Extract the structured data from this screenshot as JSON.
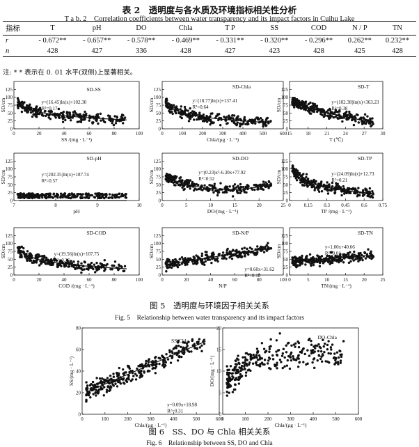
{
  "table": {
    "title_cn": "表 2　透明度与各水质及环境指标相关性分析",
    "title_en": "T a b. 2　Correlation coefficients between water transparency and its impact factors in Cuihu Lake",
    "header": [
      "指标",
      "T",
      "pH",
      "DO",
      "Chla",
      "T P",
      "SS",
      "COD",
      "N / P",
      "TN"
    ],
    "rows": [
      [
        "r",
        "- 0.672**",
        "- 0.657**",
        "- 0.578**",
        "- 0.469**",
        "- 0.331**",
        "- 0.320**",
        "- 0.296**",
        "0.262**",
        "0.232**"
      ],
      [
        "n",
        "428",
        "427",
        "336",
        "428",
        "427",
        "423",
        "428",
        "425",
        "428"
      ]
    ],
    "note": "注: * * 表示在 0. 01 水平(双侧)上显著相关。"
  },
  "fig5": {
    "caption_cn": "图 5　透明度与环境因子相关关系",
    "caption_en": "Fig. 5　Relationship between water transparency and its impact factors"
  },
  "fig6": {
    "caption_cn": "图 6　SS、DO 与 Chla 相关关系",
    "caption_en": "Fig. 6　Relationship between SS, DO and Chla"
  },
  "chart_data": [
    {
      "type": "scatter",
      "panel": "SD-SS",
      "xlabel": "SS /(mg · L⁻¹)",
      "ylabel": "SD/cm",
      "xlim": [
        0,
        100
      ],
      "ylim": [
        0,
        150
      ],
      "xticks": [
        0,
        20,
        40,
        60,
        80,
        100
      ],
      "yticks": [
        0,
        25,
        50,
        75,
        100,
        125
      ],
      "fit": "log",
      "a": -16.45,
      "b": 102.3,
      "equation": "y=(16.45)ln(x)+102.30",
      "r2": "R²=0.17"
    },
    {
      "type": "scatter",
      "panel": "SD-Chla",
      "xlabel": "Chla/(μg · L⁻¹)",
      "ylabel": "SD/cm",
      "xlim": [
        0,
        600
      ],
      "ylim": [
        0,
        150
      ],
      "xticks": [
        0,
        100,
        200,
        300,
        400,
        500,
        600
      ],
      "yticks": [
        0,
        25,
        50,
        75,
        100,
        125
      ],
      "fit": "log",
      "a": -18.77,
      "b": 137.41,
      "equation": "y=(18.77)ln(x)+137.41",
      "r2": "R²=0.64"
    },
    {
      "type": "scatter",
      "panel": "SD-T",
      "xlabel": "T (℃)",
      "ylabel": "SD/cm",
      "xlim": [
        15,
        30
      ],
      "ylim": [
        0,
        150
      ],
      "xticks": [
        15,
        18,
        21,
        24,
        27,
        30
      ],
      "yticks": [
        0,
        25,
        50,
        75,
        100,
        125
      ],
      "fit": "log",
      "a": -102.38,
      "b": 363.23,
      "equation": "y=(102.38)ln(x)+363.23",
      "r2": "R²=0.38"
    },
    {
      "type": "scatter",
      "panel": "SD-pH",
      "xlabel": "pH",
      "ylabel": "SD/cm",
      "xlim": [
        7,
        10
      ],
      "ylim": [
        0,
        150
      ],
      "xticks": [
        7,
        8,
        9,
        10
      ],
      "yticks": [
        0,
        25,
        50,
        75,
        100,
        125
      ],
      "fit": "log",
      "a": -202.35,
      "b": 187.74,
      "equation": "y=(202.35)ln(x)+187.74",
      "r2": "R²=0.57"
    },
    {
      "type": "scatter",
      "panel": "SD-DO",
      "xlabel": "DO/(mg · L⁻¹)",
      "ylabel": "SD/cm",
      "xlim": [
        0,
        25
      ],
      "ylim": [
        0,
        150
      ],
      "xticks": [
        0,
        5,
        10,
        15,
        20,
        25
      ],
      "yticks": [
        0,
        25,
        50,
        75,
        100,
        125
      ],
      "fit": "poly",
      "equation": "y=(0.23)x²-6.30x+77.92",
      "r2": "R²=0.52"
    },
    {
      "type": "scatter",
      "panel": "SD-TP",
      "xlabel": "TP /(mg · L⁻¹)",
      "ylabel": "SD/cm",
      "xlim": [
        0,
        0.75
      ],
      "ylim": [
        0,
        150
      ],
      "xticks": [
        0,
        0.15,
        0.3,
        0.45,
        0.6,
        0.75
      ],
      "yticks": [
        0,
        25,
        50,
        75,
        100,
        125
      ],
      "fit": "log",
      "a": -24.09,
      "b": 12.73,
      "equation": "y=(24.09)ln(x)+12.73",
      "r2": "R²=0.21"
    },
    {
      "type": "scatter",
      "panel": "SD-COD",
      "xlabel": "COD /(mg · L⁻¹)",
      "ylabel": "SD/cm",
      "xlim": [
        0,
        100
      ],
      "ylim": [
        0,
        150
      ],
      "xticks": [
        0,
        20,
        40,
        60,
        80,
        100
      ],
      "yticks": [
        0,
        25,
        50,
        75,
        100,
        125
      ],
      "fit": "log",
      "a": -19.56,
      "b": 107.75,
      "equation": "y=(19.56)ln(x)+107.75",
      "r2": "R²=0.36"
    },
    {
      "type": "scatter",
      "panel": "SD-N/P",
      "xlabel": "N/P",
      "ylabel": "SD/cm",
      "xlim": [
        0,
        100
      ],
      "ylim": [
        0,
        150
      ],
      "xticks": [
        0,
        20,
        40,
        60,
        80,
        100
      ],
      "yticks": [
        0,
        25,
        50,
        75,
        100,
        125
      ],
      "fit": "linear",
      "a": 0.6,
      "b": 31.62,
      "equation": "y=0.60x+31.62",
      "r2": "R²=0.18"
    },
    {
      "type": "scatter",
      "panel": "SD-TN",
      "xlabel": "TN/(mg · L⁻¹)",
      "ylabel": "SD/cm",
      "xlim": [
        0,
        25
      ],
      "ylim": [
        0,
        150
      ],
      "xticks": [
        0,
        5,
        10,
        15,
        20,
        25
      ],
      "yticks": [
        0,
        25,
        50,
        75,
        100,
        125
      ],
      "fit": "linear",
      "a": 1.0,
      "b": 40.66,
      "equation": "y=1.00x+40.66",
      "r2": "R²=0.01"
    },
    {
      "type": "scatter",
      "panel": "SS-Chla",
      "xlabel": "Chla/(μg · L⁻¹)",
      "ylabel": "SS/(mg · L⁻¹)",
      "xlim": [
        0,
        600
      ],
      "ylim": [
        0,
        80
      ],
      "xticks": [
        0,
        100,
        200,
        300,
        400,
        500,
        600
      ],
      "yticks": [
        0,
        20,
        40,
        60,
        80
      ],
      "fit": "linear",
      "a": 0.09,
      "b": 18.98,
      "equation": "y=0.09x+18.98",
      "r2": "R²=0.31"
    },
    {
      "type": "scatter",
      "panel": "DO-Chla",
      "xlabel": "Chla/(μg · L⁻¹)",
      "ylabel": "DO/(mg · L⁻¹)",
      "xlim": [
        0,
        600
      ],
      "ylim": [
        0,
        20
      ],
      "xticks": [
        0,
        100,
        200,
        300,
        400,
        500,
        600
      ],
      "yticks": [
        0,
        5,
        10,
        15,
        20
      ],
      "fit": "none",
      "equation": "",
      "r2": ""
    }
  ]
}
